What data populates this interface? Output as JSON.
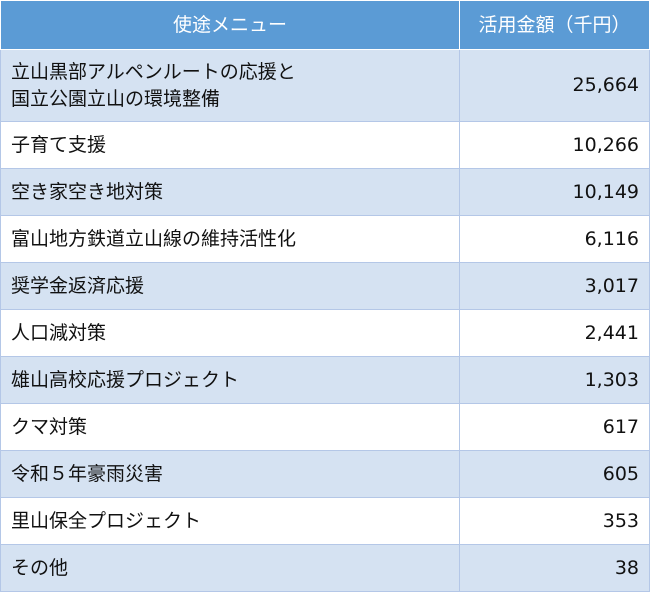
{
  "table": {
    "headers": {
      "menu": "使途メニュー",
      "amount": "活用金額（千円）"
    },
    "rows": [
      {
        "menu": [
          "立山黒部アルペンルートの応援と",
          "国立公園立山の環境整備"
        ],
        "amount": "25,664"
      },
      {
        "menu": [
          "子育て支援"
        ],
        "amount": "10,266"
      },
      {
        "menu": [
          "空き家空き地対策"
        ],
        "amount": "10,149"
      },
      {
        "menu": [
          "富山地方鉄道立山線の維持活性化"
        ],
        "amount": "6,116"
      },
      {
        "menu": [
          "奨学金返済応援"
        ],
        "amount": "3,017"
      },
      {
        "menu": [
          "人口減対策"
        ],
        "amount": "2,441"
      },
      {
        "menu": [
          "雄山高校応援プロジェクト"
        ],
        "amount": "1,303"
      },
      {
        "menu": [
          "クマ対策"
        ],
        "amount": "617"
      },
      {
        "menu": [
          "令和５年豪雨災害"
        ],
        "amount": "605"
      },
      {
        "menu": [
          "里山保全プロジェクト"
        ],
        "amount": "353"
      },
      {
        "menu": [
          "その他"
        ],
        "amount": "38"
      }
    ]
  },
  "colors": {
    "header_bg": "#5b9bd5",
    "header_text": "#ffffff",
    "row_stripe": "#d5e2f2",
    "row_plain": "#ffffff"
  }
}
